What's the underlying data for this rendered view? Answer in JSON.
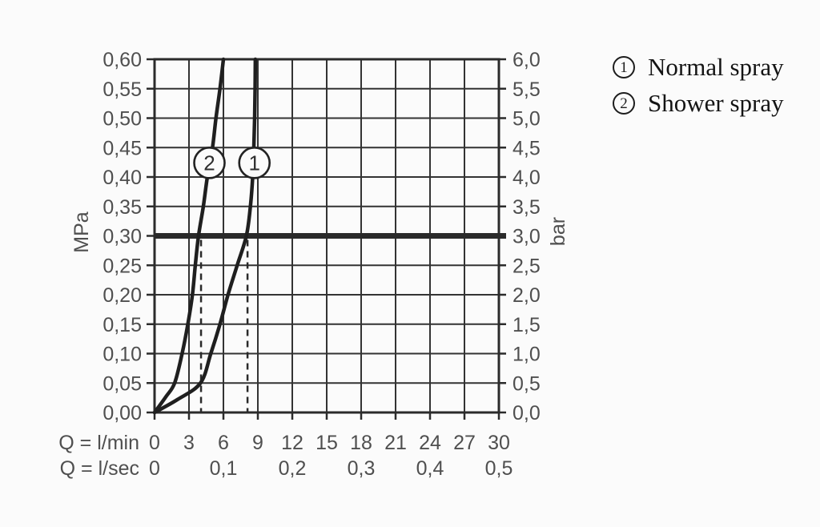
{
  "page": {
    "background": "#fbfbfb"
  },
  "colors": {
    "grid": "#333333",
    "border": "#2b2b2b",
    "curve": "#1f1f1f",
    "reference_line": "#2a2a2a",
    "dashed_guide": "#2a2a2a",
    "tick_text": "#4f4f4f",
    "marker_fill": "#fbfbfb",
    "marker_stroke": "#232323",
    "marker_text": "#2e2e2e",
    "legend_text": "#141414"
  },
  "chart_data": {
    "type": "line",
    "title": "",
    "grid": true,
    "legend_position": "top-right-outside",
    "x_axis": {
      "primary_label": "Q = l/min",
      "secondary_label": "Q = l/sec",
      "range_lmin": [
        0,
        30
      ],
      "primary_ticks": {
        "values": [
          0,
          3,
          6,
          9,
          12,
          15,
          18,
          21,
          24,
          27,
          30
        ],
        "labels": [
          "0",
          "3",
          "6",
          "9",
          "12",
          "15",
          "18",
          "21",
          "24",
          "27",
          "30"
        ]
      },
      "secondary_ticks": {
        "values": [
          0,
          6,
          12,
          18,
          24,
          30
        ],
        "labels": [
          "0",
          "0,1",
          "0,2",
          "0,3",
          "0,4",
          "0,5"
        ]
      }
    },
    "y_axis_left": {
      "unit": "MPa",
      "range": [
        0,
        0.6
      ],
      "values": [
        0,
        0.05,
        0.1,
        0.15,
        0.2,
        0.25,
        0.3,
        0.35,
        0.4,
        0.45,
        0.5,
        0.55,
        0.6
      ],
      "labels": [
        "0,00",
        "0,05",
        "0,10",
        "0,15",
        "0,20",
        "0,25",
        "0,30",
        "0,35",
        "0,40",
        "0,45",
        "0,50",
        "0,55",
        "0,60"
      ]
    },
    "y_axis_right": {
      "unit": "bar",
      "range": [
        0,
        6
      ],
      "labels": [
        "0,0",
        "0,5",
        "1,0",
        "1,5",
        "2,0",
        "2,5",
        "3,0",
        "3,5",
        "4,0",
        "4,5",
        "5,0",
        "5,5",
        "6,0"
      ]
    },
    "reference_line": {
      "mpa": 0.3,
      "bar": 3.0
    },
    "dashed_guides": [
      {
        "lmin": 4.05,
        "to_mpa": 0.3
      },
      {
        "lmin": 8.1,
        "to_mpa": 0.3
      }
    ],
    "series": [
      {
        "id": "1",
        "name": "Normal spray",
        "marker": {
          "lmin": 8.7,
          "mpa": 0.424
        },
        "flow_at_3bar_lmin": 8.0,
        "points": [
          [
            0,
            0
          ],
          [
            2.0,
            0.022
          ],
          [
            4.0,
            0.05
          ],
          [
            4.9,
            0.1
          ],
          [
            5.7,
            0.15
          ],
          [
            6.4,
            0.2
          ],
          [
            7.2,
            0.25
          ],
          [
            8.0,
            0.3
          ],
          [
            8.35,
            0.35
          ],
          [
            8.55,
            0.4
          ],
          [
            8.65,
            0.45
          ],
          [
            8.72,
            0.5
          ],
          [
            8.76,
            0.55
          ],
          [
            8.78,
            0.6
          ]
        ]
      },
      {
        "id": "2",
        "name": "Shower spray",
        "marker": {
          "lmin": 4.78,
          "mpa": 0.424
        },
        "flow_at_3bar_lmin": 4.0,
        "points": [
          [
            0,
            0
          ],
          [
            1.0,
            0.027
          ],
          [
            1.75,
            0.05
          ],
          [
            2.4,
            0.1
          ],
          [
            2.9,
            0.15
          ],
          [
            3.3,
            0.2
          ],
          [
            3.55,
            0.25
          ],
          [
            3.83,
            0.3
          ],
          [
            4.25,
            0.35
          ],
          [
            4.6,
            0.4
          ],
          [
            5.05,
            0.45
          ],
          [
            5.35,
            0.5
          ],
          [
            5.7,
            0.55
          ],
          [
            6.0,
            0.6
          ]
        ]
      }
    ],
    "legend": [
      {
        "symbol": "1",
        "label": "Normal spray"
      },
      {
        "symbol": "2",
        "label": "Shower spray"
      }
    ]
  }
}
